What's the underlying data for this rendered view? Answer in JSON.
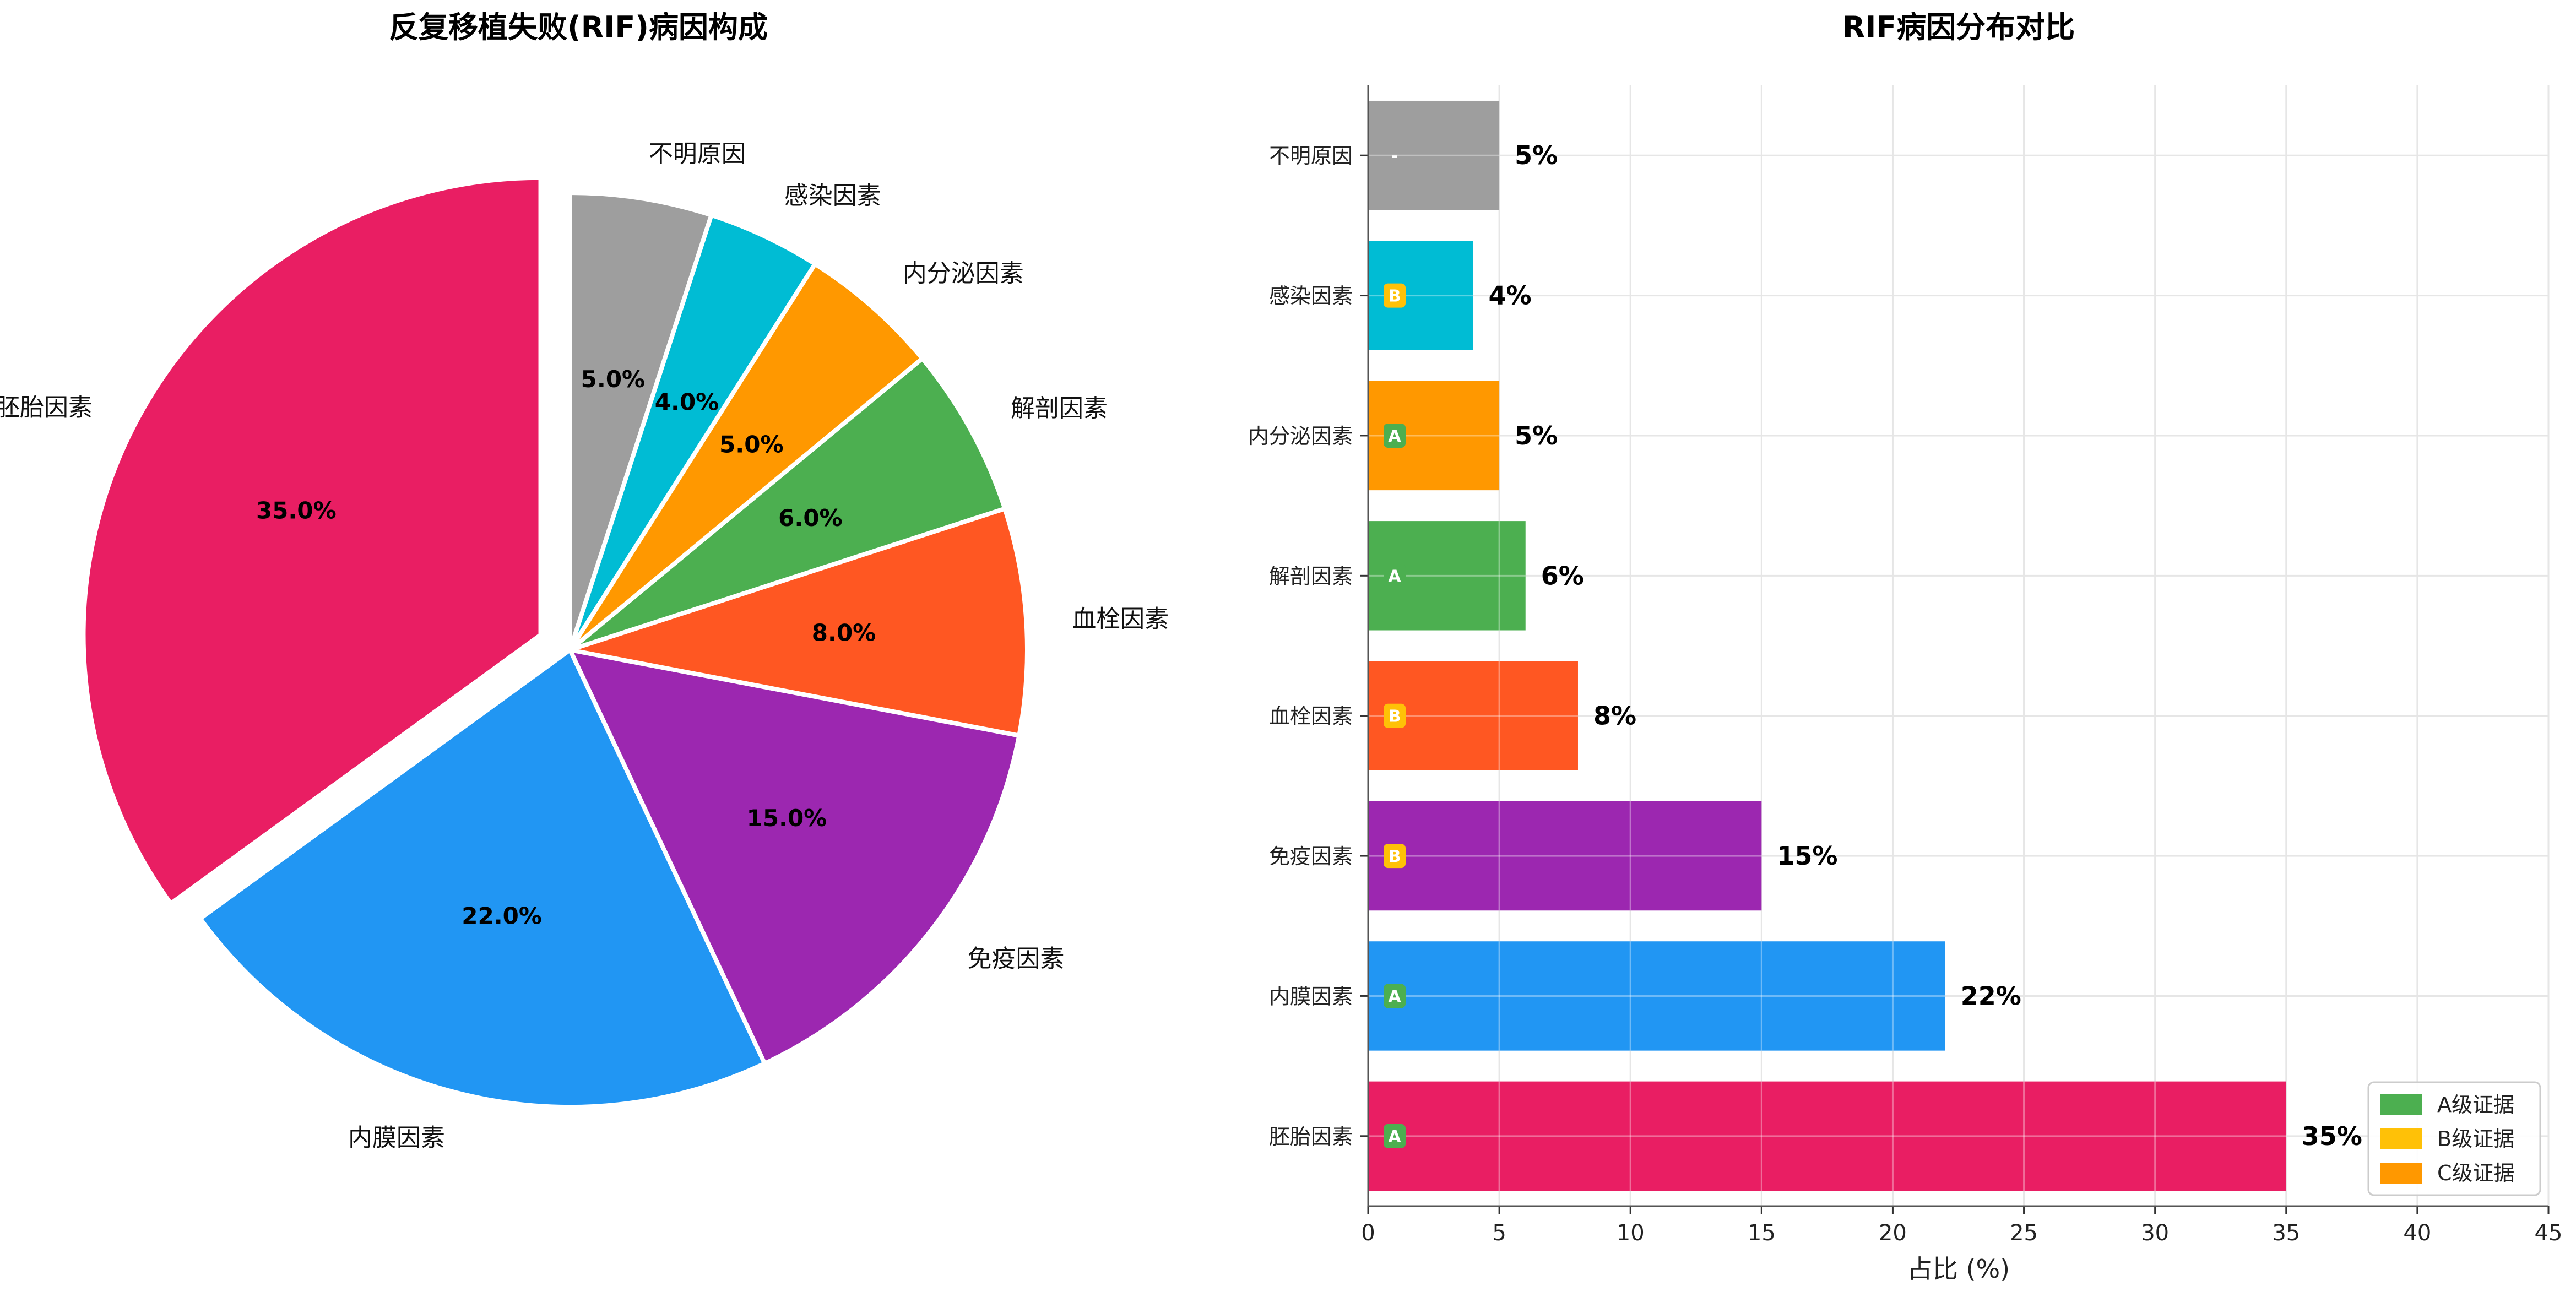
{
  "chart_data": [
    {
      "type": "pie",
      "title": "反复移植失败(RIF)病因构成",
      "slices": [
        {
          "label": "胚胎因素",
          "value": 35.0,
          "pct_label": "35.0%",
          "color": "#E91E63",
          "exploded": true
        },
        {
          "label": "内膜因素",
          "value": 22.0,
          "pct_label": "22.0%",
          "color": "#2196F3",
          "exploded": false
        },
        {
          "label": "免疫因素",
          "value": 15.0,
          "pct_label": "15.0%",
          "color": "#9C27B0",
          "exploded": false
        },
        {
          "label": "血栓因素",
          "value": 8.0,
          "pct_label": "8.0%",
          "color": "#FF5722",
          "exploded": false
        },
        {
          "label": "解剖因素",
          "value": 6.0,
          "pct_label": "6.0%",
          "color": "#4CAF50",
          "exploded": false
        },
        {
          "label": "内分泌因素",
          "value": 5.0,
          "pct_label": "5.0%",
          "color": "#FF9800",
          "exploded": false
        },
        {
          "label": "感染因素",
          "value": 4.0,
          "pct_label": "4.0%",
          "color": "#00BCD4",
          "exploded": false
        },
        {
          "label": "不明原因",
          "value": 5.0,
          "pct_label": "5.0%",
          "color": "#9E9E9E",
          "exploded": false
        }
      ]
    },
    {
      "type": "bar",
      "orientation": "horizontal",
      "title": "RIF病因分布对比",
      "xlabel": "占比 (%)",
      "xlim": [
        0,
        45
      ],
      "xticks": [
        0,
        5,
        10,
        15,
        20,
        25,
        30,
        35,
        40,
        45
      ],
      "grid": true,
      "legend_position": "lower-right",
      "bars": [
        {
          "category": "胚胎因素",
          "value": 35,
          "value_label": "35%",
          "evidence": "A",
          "color": "#E91E63"
        },
        {
          "category": "内膜因素",
          "value": 22,
          "value_label": "22%",
          "evidence": "A",
          "color": "#2196F3"
        },
        {
          "category": "免疫因素",
          "value": 15,
          "value_label": "15%",
          "evidence": "B",
          "color": "#9C27B0"
        },
        {
          "category": "血栓因素",
          "value": 8,
          "value_label": "8%",
          "evidence": "B",
          "color": "#FF5722"
        },
        {
          "category": "解剖因素",
          "value": 6,
          "value_label": "6%",
          "evidence": "A",
          "color": "#4CAF50"
        },
        {
          "category": "内分泌因素",
          "value": 5,
          "value_label": "5%",
          "evidence": "A",
          "color": "#FF9800"
        },
        {
          "category": "感染因素",
          "value": 4,
          "value_label": "4%",
          "evidence": "B",
          "color": "#00BCD4"
        },
        {
          "category": "不明原因",
          "value": 5,
          "value_label": "5%",
          "evidence": "-",
          "color": "#9E9E9E"
        }
      ],
      "evidence_colors": {
        "A": "#4CAF50",
        "B": "#FFC107",
        "C": "#FF9800"
      },
      "legend": [
        {
          "label": "A级证据",
          "color": "#4CAF50"
        },
        {
          "label": "B级证据",
          "color": "#FFC107"
        },
        {
          "label": "C级证据",
          "color": "#FF9800"
        }
      ]
    }
  ]
}
